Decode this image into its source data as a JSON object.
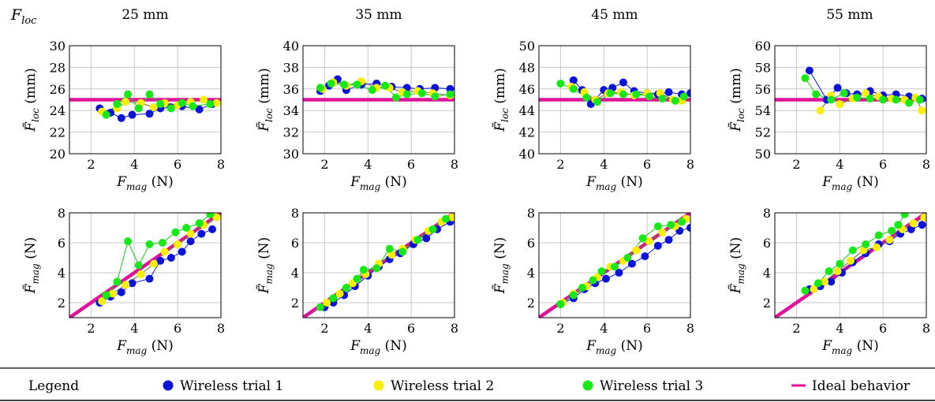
{
  "header": {
    "corner": "F",
    "corner_sub": "loc",
    "columns": [
      "25 mm",
      "35 mm",
      "45 mm",
      "55 mm"
    ]
  },
  "axis_text": {
    "x": {
      "sym": "F",
      "sub": "mag",
      "unit": " (N)"
    },
    "y_loc": {
      "sym": "F̃",
      "sub": "loc",
      "unit": " (mm)"
    },
    "y_mag": {
      "sym": "F̃",
      "sub": "mag",
      "unit": " (N)"
    }
  },
  "legend": {
    "title": "Legend",
    "items": [
      {
        "label": "Wireless trial 1",
        "color": "#0a14d8",
        "kind": "marker"
      },
      {
        "label": "Wireless trial 2",
        "color": "#f7f000",
        "kind": "marker"
      },
      {
        "label": "Wireless trial 3",
        "color": "#18e818",
        "kind": "marker"
      },
      {
        "label": "Ideal behavior",
        "color": "#e0119a",
        "kind": "line"
      }
    ]
  },
  "colors": {
    "ideal": "#e0119a",
    "grid": "#c8c8c8",
    "trial1": "#0a14d8",
    "trial2": "#f7f000",
    "trial3": "#18e818"
  },
  "chart_data": [
    {
      "type": "line",
      "row": "location",
      "column": "25 mm",
      "xlim": [
        1,
        8
      ],
      "ylim": [
        20,
        30
      ],
      "xticks": [
        2,
        4,
        6,
        8
      ],
      "yticks": [
        20,
        22,
        24,
        26,
        28,
        30
      ],
      "grid": true,
      "ideal": [
        [
          1,
          25
        ],
        [
          8,
          25
        ]
      ],
      "series": [
        {
          "name": "Wireless trial 1",
          "x": [
            2.4,
            2.9,
            3.4,
            3.9,
            4.7,
            5.2,
            5.7,
            6.2,
            7.0,
            7.6
          ],
          "y": [
            24.2,
            23.8,
            23.3,
            23.6,
            23.7,
            24.2,
            24.3,
            24.4,
            24.1,
            24.6
          ]
        },
        {
          "name": "Wireless trial 2",
          "x": [
            2.5,
            3.2,
            3.6,
            4.3,
            4.9,
            5.4,
            6.0,
            6.6,
            7.2,
            7.8
          ],
          "y": [
            23.9,
            24.2,
            24.8,
            24.7,
            24.3,
            24.7,
            24.5,
            24.8,
            25.0,
            24.7
          ]
        },
        {
          "name": "Wireless trial 3",
          "x": [
            2.7,
            3.2,
            3.7,
            4.2,
            4.7,
            5.2,
            5.7,
            6.2,
            6.7,
            7.5
          ],
          "y": [
            23.6,
            24.6,
            25.5,
            24.2,
            25.5,
            24.6,
            24.2,
            24.7,
            24.4,
            24.6
          ]
        }
      ]
    },
    {
      "type": "line",
      "row": "location",
      "column": "35 mm",
      "xlim": [
        1,
        8
      ],
      "ylim": [
        30,
        40
      ],
      "xticks": [
        2,
        4,
        6,
        8
      ],
      "yticks": [
        30,
        32,
        34,
        36,
        38,
        40
      ],
      "grid": true,
      "ideal": [
        [
          1,
          35
        ],
        [
          8,
          35
        ]
      ],
      "series": [
        {
          "name": "Wireless trial 1",
          "x": [
            1.8,
            2.2,
            2.6,
            3.0,
            3.7,
            4.4,
            5.1,
            5.8,
            6.4,
            7.1,
            7.8
          ],
          "y": [
            35.8,
            36.3,
            36.9,
            35.9,
            36.4,
            36.5,
            36.2,
            36.1,
            36.0,
            36.1,
            36.0
          ]
        },
        {
          "name": "Wireless trial 2",
          "x": [
            1.9,
            2.4,
            3.0,
            3.7,
            4.4,
            5.0,
            5.6,
            6.3,
            7.0,
            7.8
          ],
          "y": [
            36.0,
            36.6,
            36.3,
            36.7,
            36.1,
            36.1,
            35.7,
            35.8,
            35.6,
            35.4
          ]
        },
        {
          "name": "Wireless trial 3",
          "x": [
            1.8,
            2.3,
            2.9,
            3.5,
            4.2,
            4.8,
            5.3,
            5.8,
            6.5,
            7.1,
            7.8
          ],
          "y": [
            36.1,
            36.5,
            36.4,
            36.4,
            35.9,
            36.3,
            35.2,
            35.5,
            35.6,
            35.3,
            35.5
          ]
        }
      ]
    },
    {
      "type": "line",
      "row": "location",
      "column": "45 mm",
      "xlim": [
        1,
        8
      ],
      "ylim": [
        40,
        50
      ],
      "xticks": [
        2,
        4,
        6,
        8
      ],
      "yticks": [
        40,
        42,
        44,
        46,
        48,
        50
      ],
      "grid": true,
      "ideal": [
        [
          1,
          45
        ],
        [
          8,
          45
        ]
      ],
      "series": [
        {
          "name": "Wireless trial 1",
          "x": [
            2.6,
            3.0,
            3.4,
            4.0,
            4.4,
            4.9,
            5.4,
            6.0,
            6.5,
            7.0,
            7.6,
            8.0
          ],
          "y": [
            46.8,
            45.9,
            44.6,
            45.9,
            46.1,
            46.6,
            45.8,
            45.6,
            45.5,
            45.7,
            45.5,
            45.6
          ]
        },
        {
          "name": "Wireless trial 2",
          "x": [
            2.5,
            3.1,
            3.6,
            4.2,
            4.8,
            5.4,
            6.0,
            6.6,
            7.2,
            7.6
          ],
          "y": [
            46.2,
            45.7,
            45.0,
            45.6,
            45.7,
            45.4,
            45.6,
            45.6,
            45.0,
            44.9
          ]
        },
        {
          "name": "Wireless trial 3",
          "x": [
            2.0,
            2.6,
            3.2,
            3.7,
            4.3,
            4.9,
            5.5,
            6.1,
            6.7,
            7.3,
            7.7
          ],
          "y": [
            46.5,
            46.0,
            45.2,
            44.8,
            45.6,
            45.5,
            45.5,
            45.3,
            45.1,
            44.9,
            45.3
          ]
        }
      ]
    },
    {
      "type": "line",
      "row": "location",
      "column": "55 mm",
      "xlim": [
        1,
        8
      ],
      "ylim": [
        50,
        60
      ],
      "xticks": [
        2,
        4,
        6,
        8
      ],
      "yticks": [
        50,
        52,
        54,
        56,
        58,
        60
      ],
      "grid": true,
      "ideal": [
        [
          1,
          55
        ],
        [
          8,
          55
        ]
      ],
      "series": [
        {
          "name": "Wireless trial 1",
          "x": [
            2.6,
            3.4,
            3.9,
            4.3,
            4.8,
            5.4,
            6.0,
            6.6,
            7.2,
            7.8
          ],
          "y": [
            57.7,
            55.0,
            56.1,
            55.6,
            55.5,
            55.8,
            55.4,
            55.5,
            55.3,
            55.1
          ]
        },
        {
          "name": "Wireless trial 2",
          "x": [
            3.1,
            3.6,
            4.0,
            4.6,
            5.2,
            5.8,
            6.4,
            7.0,
            7.5,
            7.8
          ],
          "y": [
            54.0,
            55.4,
            54.6,
            55.1,
            55.6,
            55.3,
            55.1,
            55.0,
            55.2,
            54.0
          ]
        },
        {
          "name": "Wireless trial 3",
          "x": [
            2.4,
            2.9,
            3.6,
            4.2,
            4.8,
            5.4,
            6.0,
            6.6,
            7.2,
            7.7
          ],
          "y": [
            57.0,
            55.5,
            55.0,
            55.6,
            55.2,
            55.1,
            55.0,
            55.0,
            54.7,
            55.0
          ]
        }
      ]
    },
    {
      "type": "line",
      "row": "magnitude",
      "column": "25 mm",
      "xlim": [
        1,
        8
      ],
      "ylim": [
        1,
        8
      ],
      "xticks": [
        2,
        4,
        6,
        8
      ],
      "yticks": [
        2,
        4,
        6,
        8
      ],
      "grid": true,
      "ideal": [
        [
          1,
          1
        ],
        [
          8,
          8
        ]
      ],
      "series": [
        {
          "name": "Wireless trial 1",
          "x": [
            2.4,
            2.9,
            3.4,
            3.9,
            4.7,
            5.2,
            5.7,
            6.2,
            6.6,
            7.1,
            7.6
          ],
          "y": [
            2.0,
            2.4,
            2.7,
            3.3,
            3.6,
            4.8,
            5.0,
            5.4,
            6.1,
            6.6,
            6.9
          ]
        },
        {
          "name": "Wireless trial 2",
          "x": [
            2.5,
            3.0,
            3.6,
            4.3,
            4.9,
            5.4,
            6.0,
            6.6,
            7.2,
            7.8
          ],
          "y": [
            2.1,
            2.6,
            3.2,
            3.9,
            4.6,
            5.4,
            5.9,
            6.6,
            7.2,
            7.7
          ]
        },
        {
          "name": "Wireless trial 3",
          "x": [
            2.7,
            3.2,
            3.7,
            4.2,
            4.7,
            5.3,
            5.9,
            6.4,
            7.0,
            7.5
          ],
          "y": [
            2.5,
            3.4,
            6.1,
            4.5,
            5.9,
            6.0,
            6.7,
            7.0,
            7.3,
            7.9
          ]
        }
      ]
    },
    {
      "type": "line",
      "row": "magnitude",
      "column": "35 mm",
      "xlim": [
        1,
        8
      ],
      "ylim": [
        1,
        8
      ],
      "xticks": [
        2,
        4,
        6,
        8
      ],
      "yticks": [
        2,
        4,
        6,
        8
      ],
      "grid": true,
      "ideal": [
        [
          1,
          1
        ],
        [
          8,
          8
        ]
      ],
      "series": [
        {
          "name": "Wireless trial 1",
          "x": [
            2.0,
            2.4,
            2.9,
            3.4,
            4.0,
            4.5,
            5.0,
            5.5,
            6.1,
            6.7,
            7.2,
            7.8
          ],
          "y": [
            1.7,
            2.0,
            2.5,
            3.1,
            3.8,
            4.4,
            4.9,
            5.3,
            5.9,
            6.3,
            6.9,
            7.4
          ]
        },
        {
          "name": "Wireless trial 2",
          "x": [
            2.1,
            2.7,
            3.3,
            3.9,
            4.5,
            5.1,
            5.6,
            6.2,
            6.8,
            7.4,
            7.9
          ],
          "y": [
            2.0,
            2.6,
            3.3,
            3.9,
            4.6,
            5.2,
            5.6,
            6.2,
            6.8,
            7.4,
            7.7
          ]
        },
        {
          "name": "Wireless trial 3",
          "x": [
            1.8,
            2.4,
            3.0,
            3.5,
            3.8,
            4.4,
            5.0,
            5.6,
            6.3,
            7.0,
            7.6
          ],
          "y": [
            1.7,
            2.3,
            3.0,
            3.6,
            4.2,
            4.3,
            5.6,
            5.4,
            6.2,
            6.9,
            7.6
          ]
        }
      ]
    },
    {
      "type": "line",
      "row": "magnitude",
      "column": "45 mm",
      "xlim": [
        1,
        8
      ],
      "ylim": [
        1,
        8
      ],
      "xticks": [
        2,
        4,
        6,
        8
      ],
      "yticks": [
        2,
        4,
        6,
        8
      ],
      "grid": true,
      "ideal": [
        [
          1,
          1
        ],
        [
          8,
          8
        ]
      ],
      "series": [
        {
          "name": "Wireless trial 1",
          "x": [
            2.0,
            2.6,
            3.1,
            3.6,
            4.1,
            4.7,
            5.3,
            5.9,
            6.5,
            7.0,
            7.5,
            8.0
          ],
          "y": [
            1.9,
            2.3,
            2.9,
            3.3,
            3.6,
            4.0,
            4.6,
            5.1,
            5.8,
            6.2,
            6.8,
            7.0
          ]
        },
        {
          "name": "Wireless trial 2",
          "x": [
            2.1,
            2.6,
            3.2,
            3.7,
            4.3,
            4.9,
            5.5,
            6.1,
            6.7,
            7.3,
            7.8
          ],
          "y": [
            2.0,
            2.6,
            3.1,
            3.7,
            4.4,
            4.8,
            5.5,
            6.1,
            6.7,
            7.1,
            7.6
          ]
        },
        {
          "name": "Wireless trial 3",
          "x": [
            2.0,
            2.6,
            3.0,
            3.5,
            3.9,
            4.5,
            5.1,
            5.8,
            6.5,
            7.1,
            7.6
          ],
          "y": [
            1.9,
            2.5,
            3.0,
            3.5,
            4.1,
            4.4,
            5.0,
            6.3,
            7.1,
            7.2,
            7.4
          ]
        }
      ]
    },
    {
      "type": "line",
      "row": "magnitude",
      "column": "55 mm",
      "xlim": [
        1,
        8
      ],
      "ylim": [
        1,
        8
      ],
      "xticks": [
        2,
        4,
        6,
        8
      ],
      "yticks": [
        2,
        4,
        6,
        8
      ],
      "grid": true,
      "ideal": [
        [
          1,
          1
        ],
        [
          8,
          8
        ]
      ],
      "series": [
        {
          "name": "Wireless trial 1",
          "x": [
            2.6,
            3.1,
            3.6,
            4.1,
            4.6,
            5.2,
            5.8,
            6.3,
            6.8,
            7.3,
            7.8
          ],
          "y": [
            2.9,
            3.1,
            3.4,
            4.0,
            4.7,
            5.3,
            5.9,
            6.1,
            6.6,
            6.9,
            7.2
          ]
        },
        {
          "name": "Wireless trial 2",
          "x": [
            2.8,
            3.3,
            3.9,
            4.5,
            5.1,
            5.7,
            6.3,
            6.9,
            7.4,
            7.9
          ],
          "y": [
            2.9,
            3.4,
            4.1,
            4.8,
            5.5,
            5.7,
            6.2,
            6.9,
            7.3,
            7.7
          ]
        },
        {
          "name": "Wireless trial 3",
          "x": [
            2.4,
            3.0,
            3.5,
            4.0,
            4.6,
            5.2,
            5.8,
            6.4,
            6.7,
            7.0
          ],
          "y": [
            2.8,
            3.3,
            4.1,
            4.6,
            5.5,
            5.9,
            6.5,
            6.8,
            7.2,
            7.9
          ]
        }
      ]
    }
  ]
}
